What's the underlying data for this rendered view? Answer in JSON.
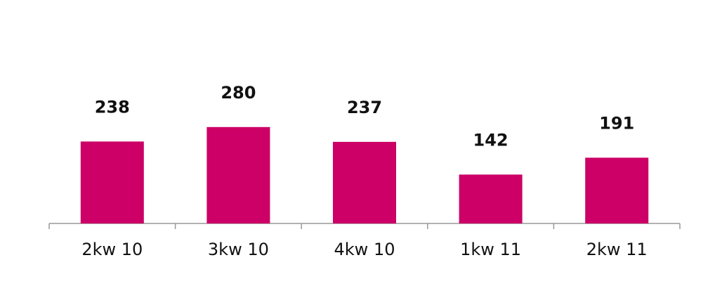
{
  "chart_data": {
    "type": "bar",
    "categories": [
      "2kw 10",
      "3kw 10",
      "4kw 10",
      "1kw 11",
      "2kw 11"
    ],
    "values": [
      238,
      280,
      237,
      142,
      191
    ],
    "color": "#cc0066"
  }
}
